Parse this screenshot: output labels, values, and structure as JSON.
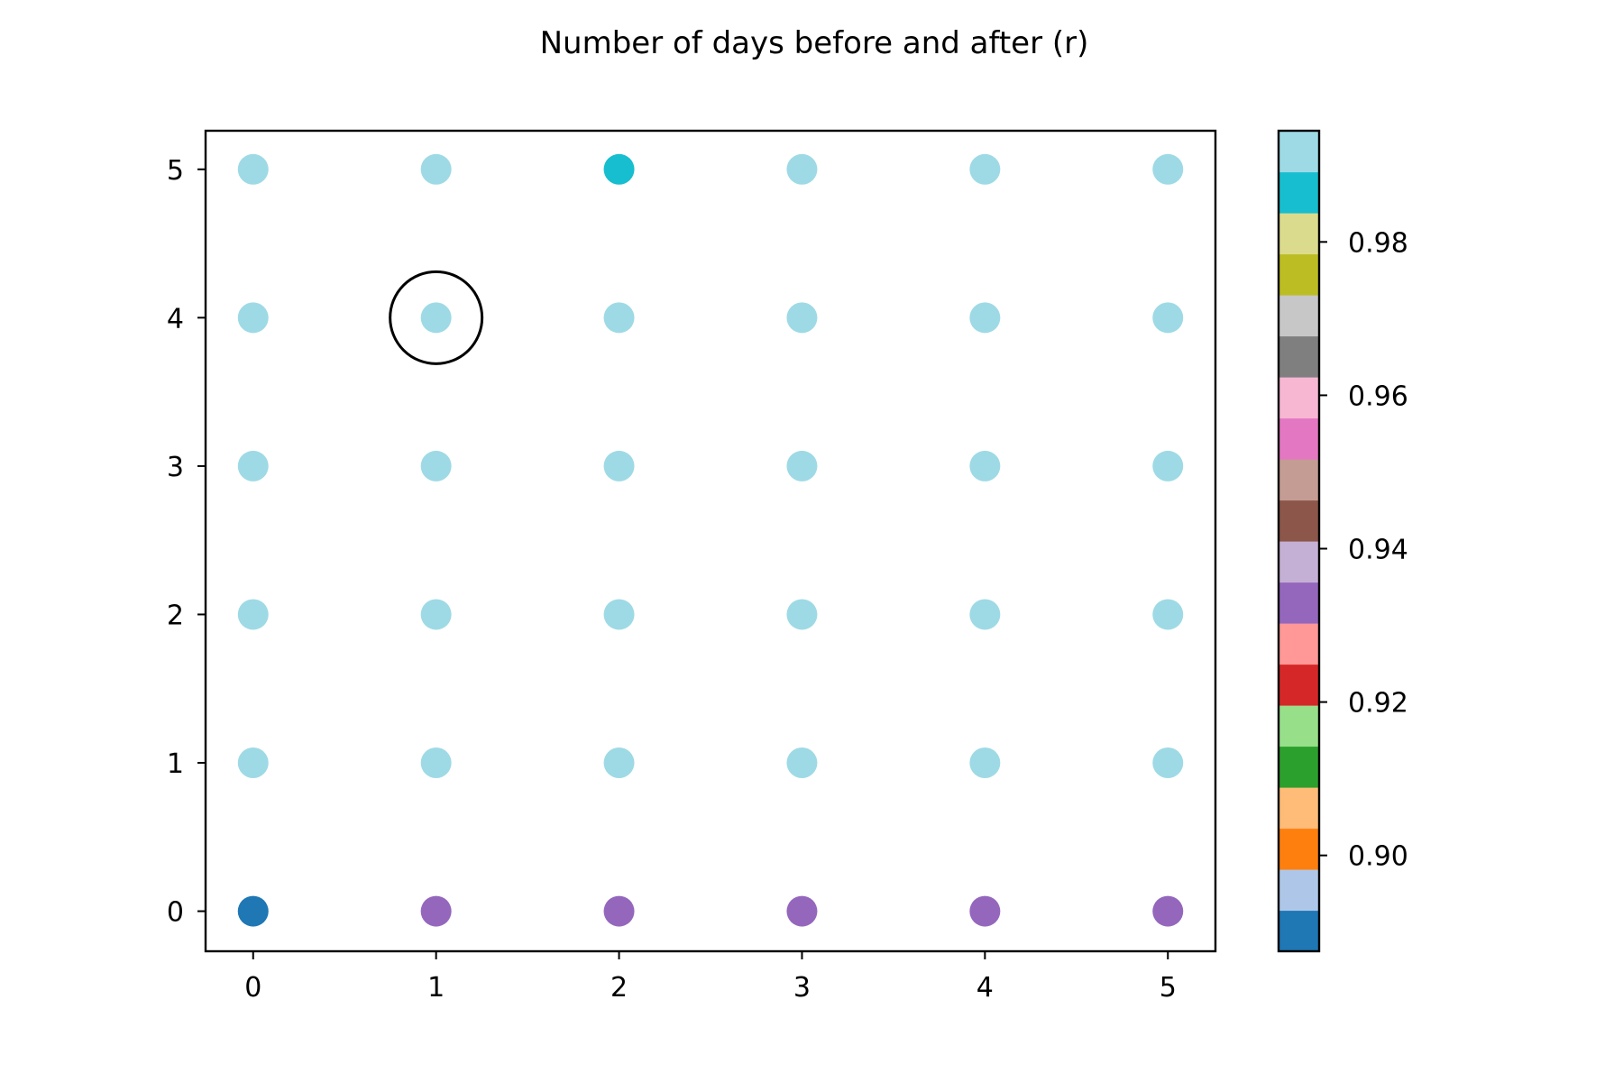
{
  "chart_data": {
    "type": "scatter",
    "title": "Number of days before and after (r)",
    "xlabel": "",
    "ylabel": "",
    "xlim": [
      -0.26,
      5.26
    ],
    "ylim": [
      -0.27,
      5.26
    ],
    "x_ticks": [
      "0",
      "1",
      "2",
      "3",
      "4",
      "5"
    ],
    "y_ticks": [
      "0",
      "1",
      "2",
      "3",
      "4",
      "5"
    ],
    "grid": false,
    "colormap": "tab20",
    "color_range": [
      0.8875,
      0.9945
    ],
    "colorbar_ticks": [
      "0.90",
      "0.92",
      "0.94",
      "0.96",
      "0.98"
    ],
    "colorbar_tick_values": [
      0.9,
      0.92,
      0.94,
      0.96,
      0.98
    ],
    "colorbar_colors": [
      "#1f77b4",
      "#aec7e8",
      "#ff7f0e",
      "#ffbb78",
      "#2ca02c",
      "#98df8a",
      "#d62728",
      "#ff9896",
      "#9467bd",
      "#c5b0d5",
      "#8c564b",
      "#c49c94",
      "#e377c2",
      "#f7b6d2",
      "#7f7f7f",
      "#c7c7c7",
      "#bcbd22",
      "#dbdb8d",
      "#17becf",
      "#9edae5"
    ],
    "points": [
      {
        "x": 0,
        "y": 0,
        "value": 0.89
      },
      {
        "x": 1,
        "y": 0,
        "value": 0.932
      },
      {
        "x": 2,
        "y": 0,
        "value": 0.932
      },
      {
        "x": 3,
        "y": 0,
        "value": 0.932
      },
      {
        "x": 4,
        "y": 0,
        "value": 0.932
      },
      {
        "x": 5,
        "y": 0,
        "value": 0.932
      },
      {
        "x": 0,
        "y": 1,
        "value": 0.992
      },
      {
        "x": 1,
        "y": 1,
        "value": 0.992
      },
      {
        "x": 2,
        "y": 1,
        "value": 0.992
      },
      {
        "x": 3,
        "y": 1,
        "value": 0.992
      },
      {
        "x": 4,
        "y": 1,
        "value": 0.992
      },
      {
        "x": 5,
        "y": 1,
        "value": 0.992
      },
      {
        "x": 0,
        "y": 2,
        "value": 0.992
      },
      {
        "x": 1,
        "y": 2,
        "value": 0.992
      },
      {
        "x": 2,
        "y": 2,
        "value": 0.992
      },
      {
        "x": 3,
        "y": 2,
        "value": 0.992
      },
      {
        "x": 4,
        "y": 2,
        "value": 0.992
      },
      {
        "x": 5,
        "y": 2,
        "value": 0.992
      },
      {
        "x": 0,
        "y": 3,
        "value": 0.992
      },
      {
        "x": 1,
        "y": 3,
        "value": 0.992
      },
      {
        "x": 2,
        "y": 3,
        "value": 0.992
      },
      {
        "x": 3,
        "y": 3,
        "value": 0.992
      },
      {
        "x": 4,
        "y": 3,
        "value": 0.992
      },
      {
        "x": 5,
        "y": 3,
        "value": 0.992
      },
      {
        "x": 0,
        "y": 4,
        "value": 0.992
      },
      {
        "x": 1,
        "y": 4,
        "value": 0.992
      },
      {
        "x": 2,
        "y": 4,
        "value": 0.992
      },
      {
        "x": 3,
        "y": 4,
        "value": 0.992
      },
      {
        "x": 4,
        "y": 4,
        "value": 0.992
      },
      {
        "x": 5,
        "y": 4,
        "value": 0.992
      },
      {
        "x": 0,
        "y": 5,
        "value": 0.992
      },
      {
        "x": 1,
        "y": 5,
        "value": 0.992
      },
      {
        "x": 2,
        "y": 5,
        "value": 0.986
      },
      {
        "x": 3,
        "y": 5,
        "value": 0.992
      },
      {
        "x": 4,
        "y": 5,
        "value": 0.992
      },
      {
        "x": 5,
        "y": 5,
        "value": 0.992
      }
    ],
    "highlight": {
      "x": 1,
      "y": 4,
      "marker": "open-circle"
    }
  }
}
